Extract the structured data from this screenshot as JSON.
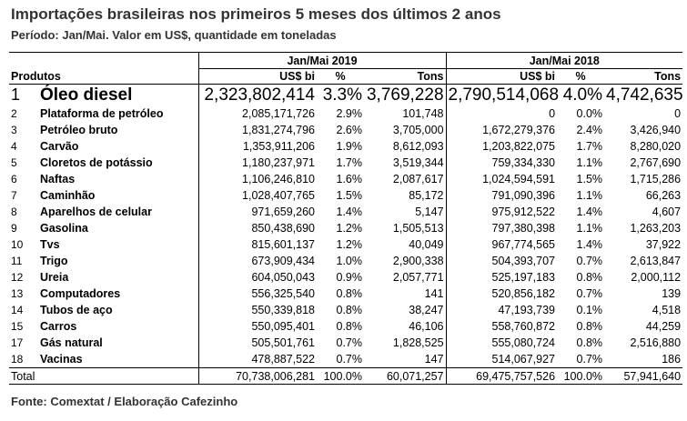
{
  "title": "Importações brasileiras nos primeiros 5 meses dos últimos 2 anos",
  "subtitle": "Período: Jan/Mai. Valor em US$, quantidade em toneladas",
  "periods": [
    "Jan/Mai 2019",
    "Jan/Mai 2018"
  ],
  "columns": {
    "products": "Produtos",
    "usd_2019": "US$ bi",
    "pct_2019": "%",
    "tons_2019": "Tons",
    "usd_2018": "US$ bi",
    "pct_2018": "%",
    "tons_2018": "Tons"
  },
  "rows": [
    {
      "rank": "1",
      "product": "Óleo diesel",
      "usd_2019": "2,323,802,414",
      "pct_2019": "3.3%",
      "tons_2019": "3,769,228",
      "usd_2018": "2,790,514,068",
      "pct_2018": "4.0%",
      "tons_2018": "4,742,635"
    },
    {
      "rank": "2",
      "product": "Plataforma de petróleo",
      "usd_2019": "2,085,171,726",
      "pct_2019": "2.9%",
      "tons_2019": "101,748",
      "usd_2018": "0",
      "pct_2018": "0.0%",
      "tons_2018": "0"
    },
    {
      "rank": "3",
      "product": "Petróleo bruto",
      "usd_2019": "1,831,274,796",
      "pct_2019": "2.6%",
      "tons_2019": "3,705,000",
      "usd_2018": "1,672,279,376",
      "pct_2018": "2.4%",
      "tons_2018": "3,426,940"
    },
    {
      "rank": "4",
      "product": "Carvão",
      "usd_2019": "1,353,911,206",
      "pct_2019": "1.9%",
      "tons_2019": "8,612,093",
      "usd_2018": "1,203,822,075",
      "pct_2018": "1.7%",
      "tons_2018": "8,280,020"
    },
    {
      "rank": "5",
      "product": "Cloretos de potássio",
      "usd_2019": "1,180,237,971",
      "pct_2019": "1.7%",
      "tons_2019": "3,519,344",
      "usd_2018": "759,334,330",
      "pct_2018": "1.1%",
      "tons_2018": "2,767,690"
    },
    {
      "rank": "6",
      "product": "Naftas",
      "usd_2019": "1,106,246,810",
      "pct_2019": "1.6%",
      "tons_2019": "2,087,617",
      "usd_2018": "1,024,594,591",
      "pct_2018": "1.5%",
      "tons_2018": "1,715,286"
    },
    {
      "rank": "7",
      "product": "Caminhão",
      "usd_2019": "1,028,407,765",
      "pct_2019": "1.5%",
      "tons_2019": "85,172",
      "usd_2018": "791,090,396",
      "pct_2018": "1.1%",
      "tons_2018": "66,263"
    },
    {
      "rank": "8",
      "product": "Aparelhos de celular",
      "usd_2019": "971,659,260",
      "pct_2019": "1.4%",
      "tons_2019": "5,147",
      "usd_2018": "975,912,522",
      "pct_2018": "1.4%",
      "tons_2018": "4,607"
    },
    {
      "rank": "9",
      "product": "Gasolina",
      "usd_2019": "850,438,690",
      "pct_2019": "1.2%",
      "tons_2019": "1,505,513",
      "usd_2018": "797,380,398",
      "pct_2018": "1.1%",
      "tons_2018": "1,263,203"
    },
    {
      "rank": "10",
      "product": "Tvs",
      "usd_2019": "815,601,137",
      "pct_2019": "1.2%",
      "tons_2019": "40,049",
      "usd_2018": "967,774,565",
      "pct_2018": "1.4%",
      "tons_2018": "37,922"
    },
    {
      "rank": "11",
      "product": "Trigo",
      "usd_2019": "673,909,434",
      "pct_2019": "1.0%",
      "tons_2019": "2,900,338",
      "usd_2018": "504,393,707",
      "pct_2018": "0.7%",
      "tons_2018": "2,613,847"
    },
    {
      "rank": "12",
      "product": "Ureia",
      "usd_2019": "604,050,043",
      "pct_2019": "0.9%",
      "tons_2019": "2,057,771",
      "usd_2018": "525,197,183",
      "pct_2018": "0.8%",
      "tons_2018": "2,000,112"
    },
    {
      "rank": "13",
      "product": "Computadores",
      "usd_2019": "556,325,540",
      "pct_2019": "0.8%",
      "tons_2019": "141",
      "usd_2018": "520,856,182",
      "pct_2018": "0.7%",
      "tons_2018": "139"
    },
    {
      "rank": "14",
      "product": "Tubos de aço",
      "usd_2019": "550,339,818",
      "pct_2019": "0.8%",
      "tons_2019": "38,247",
      "usd_2018": "47,193,739",
      "pct_2018": "0.1%",
      "tons_2018": "4,518"
    },
    {
      "rank": "15",
      "product": "Carros",
      "usd_2019": "550,095,401",
      "pct_2019": "0.8%",
      "tons_2019": "46,106",
      "usd_2018": "558,760,872",
      "pct_2018": "0.8%",
      "tons_2018": "44,259"
    },
    {
      "rank": "17",
      "product": "Gás natural",
      "usd_2019": "505,501,761",
      "pct_2019": "0.7%",
      "tons_2019": "1,828,525",
      "usd_2018": "555,080,724",
      "pct_2018": "0.8%",
      "tons_2018": "2,516,880"
    },
    {
      "rank": "18",
      "product": "Vacinas",
      "usd_2019": "478,887,522",
      "pct_2019": "0.7%",
      "tons_2019": "147",
      "usd_2018": "514,067,927",
      "pct_2018": "0.7%",
      "tons_2018": "186"
    }
  ],
  "total": {
    "label": "Total",
    "usd_2019": "70,738,006,281",
    "pct_2019": "100.0%",
    "tons_2019": "60,071,257",
    "usd_2018": "69,475,757,526",
    "pct_2018": "100.0%",
    "tons_2018": "57,941,640"
  },
  "source": "Fonte: Comextat / Elaboração Cafezinho"
}
